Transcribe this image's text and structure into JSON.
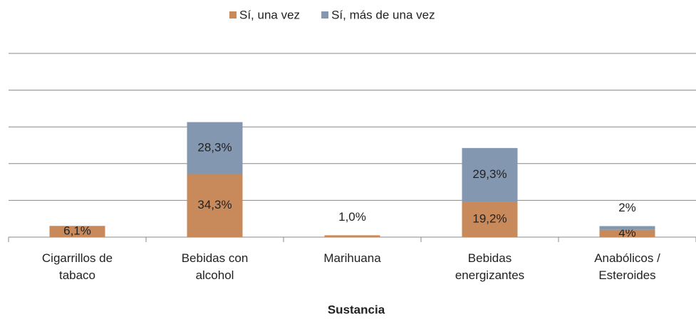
{
  "chart_data": {
    "type": "stacked_bar",
    "categories": [
      "Cigarrillos de tabaco",
      "Bebidas con alcohol",
      "Marihuana",
      "Bebidas energizantes",
      "Anabólicos / Esteroides"
    ],
    "series": [
      {
        "name": "Sí, una vez",
        "color": "#c98a5b",
        "values": [
          6.1,
          34.3,
          1.0,
          19.2,
          4
        ],
        "value_labels": [
          "6,1%",
          "34,3%",
          "1,0%",
          "19,2%",
          "4%"
        ]
      },
      {
        "name": "Sí, más de una vez",
        "color": "#8497b0",
        "values": [
          null,
          28.3,
          null,
          29.3,
          2
        ],
        "value_labels": [
          null,
          "28,3%",
          null,
          "29,3%",
          "2%"
        ]
      }
    ],
    "x_label": "Sustancia",
    "ylim": [
      0,
      100
    ],
    "yticks": [
      0,
      20,
      40,
      60,
      80,
      100
    ],
    "grid": true,
    "legend": "top"
  }
}
